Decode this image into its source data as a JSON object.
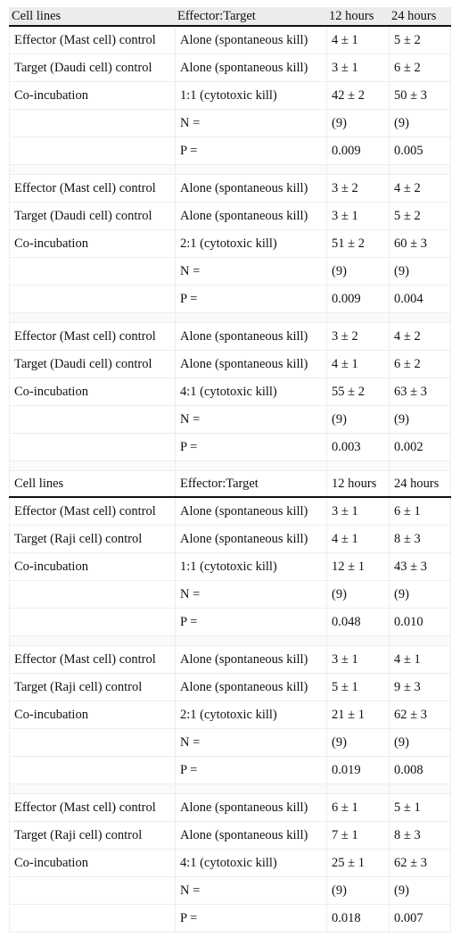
{
  "table": {
    "header_primary": [
      "Cell lines",
      "Effector:Target",
      "12 hours",
      "24 hours"
    ],
    "header_secondary": [
      "Cell lines",
      "Effector:Target",
      "12 hours",
      "24 hours"
    ],
    "groups": [
      {
        "rows": [
          [
            "Effector (Mast cell) control",
            "Alone (spontaneous kill)",
            "4 ± 1",
            "5 ± 2"
          ],
          [
            "Target (Daudi cell) control",
            "Alone (spontaneous kill)",
            "3 ± 1",
            "6 ± 2"
          ],
          [
            "Co-incubation",
            "1:1 (cytotoxic kill)",
            "42 ± 2",
            "50 ± 3"
          ],
          [
            "",
            "N =",
            "(9)",
            "(9)"
          ],
          [
            "",
            "P =",
            "0.009",
            "0.005"
          ]
        ]
      },
      {
        "rows": [
          [
            "Effector (Mast cell) control",
            "Alone (spontaneous kill)",
            "3 ± 2",
            "4 ± 2"
          ],
          [
            "Target (Daudi cell) control",
            "Alone (spontaneous kill)",
            "3 ± 1",
            "5 ± 2"
          ],
          [
            "Co-incubation",
            "2:1 (cytotoxic kill)",
            "51 ± 2",
            "60 ± 3"
          ],
          [
            "",
            "N =",
            "(9)",
            "(9)"
          ],
          [
            "",
            "P =",
            "0.009",
            "0.004"
          ]
        ]
      },
      {
        "rows": [
          [
            "Effector (Mast cell) control",
            "Alone (spontaneous kill)",
            "3 ± 2",
            "4 ± 2"
          ],
          [
            "Target (Daudi cell) control",
            "Alone (spontaneous kill)",
            "4 ± 1",
            "6 ± 2"
          ],
          [
            "Co-incubation",
            "4:1 (cytotoxic kill)",
            "55 ± 2",
            "63 ± 3"
          ],
          [
            "",
            "N =",
            "(9)",
            "(9)"
          ],
          [
            "",
            "P =",
            "0.003",
            "0.002"
          ]
        ]
      },
      {
        "rows": [
          [
            "Effector (Mast cell) control",
            "Alone (spontaneous kill)",
            "3 ± 1",
            "6 ± 1"
          ],
          [
            "Target (Raji cell) control",
            "Alone (spontaneous kill)",
            "4 ± 1",
            "8 ± 3"
          ],
          [
            "Co-incubation",
            "1:1 (cytotoxic kill)",
            "12 ± 1",
            "43 ± 3"
          ],
          [
            "",
            "N =",
            "(9)",
            "(9)"
          ],
          [
            "",
            "P =",
            "0.048",
            "0.010"
          ]
        ]
      },
      {
        "rows": [
          [
            "Effector (Mast cell) control",
            "Alone (spontaneous kill)",
            "3 ± 1",
            "4 ± 1"
          ],
          [
            "Target (Raji cell) control",
            "Alone (spontaneous kill)",
            "5 ± 1",
            "9 ± 3"
          ],
          [
            "Co-incubation",
            "2:1 (cytotoxic kill)",
            "21 ± 1",
            "62 ± 3"
          ],
          [
            "",
            "N =",
            "(9)",
            "(9)"
          ],
          [
            "",
            "P =",
            "0.019",
            "0.008"
          ]
        ]
      },
      {
        "rows": [
          [
            "Effector (Mast cell) control",
            "Alone (spontaneous kill)",
            "6 ± 1",
            "5 ± 1"
          ],
          [
            "Target (Raji cell) control",
            "Alone (spontaneous kill)",
            "7 ± 1",
            "8 ± 3"
          ],
          [
            "Co-incubation",
            "4:1 (cytotoxic kill)",
            "25 ± 1",
            "62 ± 3"
          ],
          [
            "",
            "N =",
            "(9)",
            "(9)"
          ],
          [
            "",
            "P =",
            "0.018",
            "0.007"
          ]
        ]
      }
    ]
  }
}
